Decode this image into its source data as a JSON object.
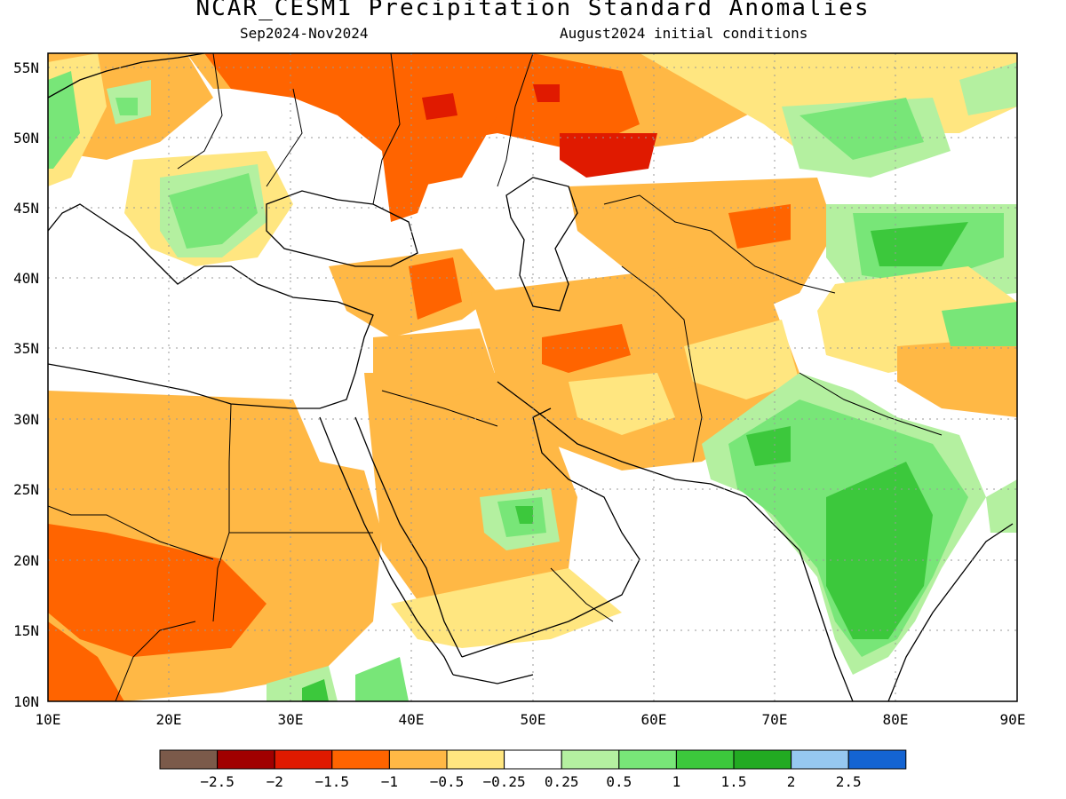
{
  "title": "NCAR_CESM1 Precipitation Standard Anomalies",
  "period": "Sep2024-Nov2024",
  "init": "August2024 initial conditions",
  "lat_labels": [
    "55N",
    "50N",
    "45N",
    "40N",
    "35N",
    "30N",
    "25N",
    "20N",
    "15N",
    "10N"
  ],
  "lon_labels": [
    "10E",
    "20E",
    "30E",
    "40E",
    "50E",
    "60E",
    "70E",
    "80E",
    "90E"
  ],
  "legend": {
    "colors": [
      "#7b5a4a",
      "#a00000",
      "#e01a00",
      "#ff6400",
      "#ffb845",
      "#ffe680",
      "#ffffff",
      "#b4f0a0",
      "#78e678",
      "#3cc83c",
      "#22aa22",
      "#96c8f0",
      "#1464d2"
    ],
    "labels": [
      "-2.5",
      "-2",
      "-1.5",
      "-1",
      "-0.5",
      "-0.25",
      "0.25",
      "0.5",
      "1",
      "1.5",
      "2",
      "2.5"
    ]
  },
  "map_extent": {
    "lon": [
      10,
      90
    ],
    "lat": [
      10,
      56
    ]
  }
}
